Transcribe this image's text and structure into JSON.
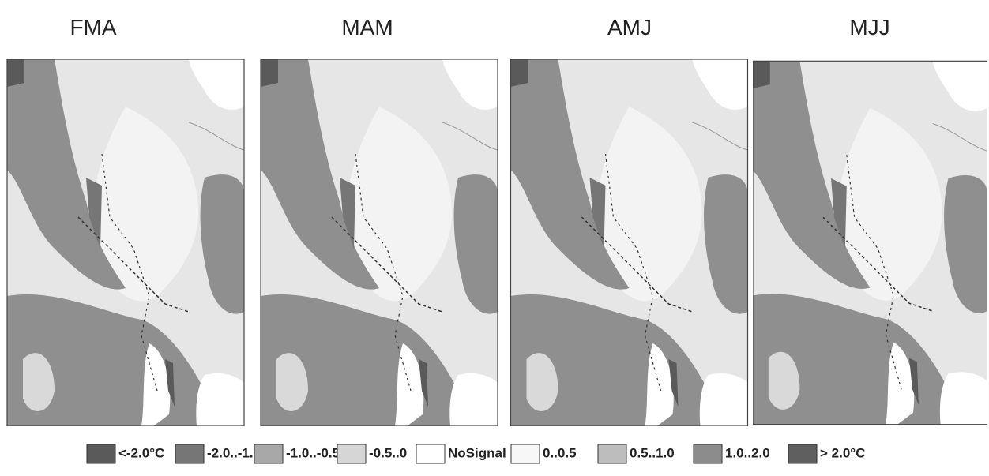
{
  "panels": [
    {
      "title": "FMA"
    },
    {
      "title": "MAM"
    },
    {
      "title": "AMJ"
    },
    {
      "title": "MJJ"
    }
  ],
  "legend": [
    {
      "label": "<-2.0°C",
      "color": "#5a5a5a"
    },
    {
      "label": "-2.0..-1.0",
      "color": "#767676"
    },
    {
      "label": "-1.0..-0.5",
      "color": "#a8a8a8"
    },
    {
      "label": "-0.5..0",
      "color": "#d6d6d6"
    },
    {
      "label": "NoSignal",
      "color": "#ffffff"
    },
    {
      "label": "0..0.5",
      "color": "#f7f7f7"
    },
    {
      "label": "0.5..1.0",
      "color": "#bdbdbd"
    },
    {
      "label": "1.0..2.0",
      "color": "#8c8c8c"
    },
    {
      "label": "> 2.0°C",
      "color": "#5f5f5f"
    }
  ]
}
